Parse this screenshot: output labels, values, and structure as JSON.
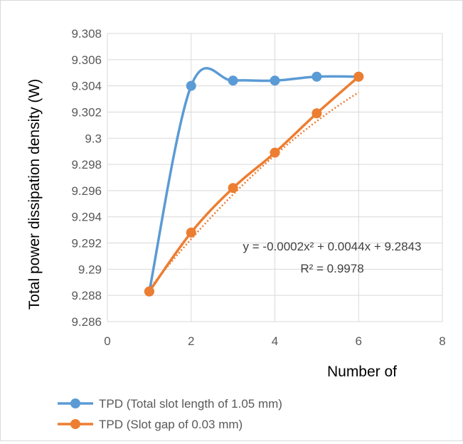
{
  "chart_data": {
    "type": "line",
    "title": "",
    "xlabel": "Number of",
    "ylabel": "Total power dissipation density (W)",
    "xlim": [
      0,
      8
    ],
    "ylim": [
      9.286,
      9.308
    ],
    "x_ticks": [
      "0",
      "2",
      "4",
      "6",
      "8"
    ],
    "y_ticks": [
      "9.286",
      "9.288",
      "9.29",
      "9.292",
      "9.294",
      "9.296",
      "9.298",
      "9.3",
      "9.302",
      "9.304",
      "9.306",
      "9.308"
    ],
    "grid": true,
    "legend_position": "bottom",
    "series": [
      {
        "name": "TPD (Total slot length of 1.05 mm)",
        "color": "#5b9bd5",
        "smooth": true,
        "x": [
          1,
          2,
          3,
          4,
          5,
          6
        ],
        "y": [
          9.2883,
          9.304,
          9.3044,
          9.3044,
          9.3047,
          9.3047
        ]
      },
      {
        "name": "TPD (Slot gap of 0.03 mm)",
        "color": "#ed7d31",
        "smooth": true,
        "x": [
          1,
          2,
          3,
          4,
          5,
          6
        ],
        "y": [
          9.2883,
          9.2928,
          9.2962,
          9.2989,
          9.3019,
          9.3047
        ]
      }
    ],
    "trendline": {
      "series": "TPD (Slot gap of 0.03 mm)",
      "type": "polynomial",
      "coefficients": [
        -0.0002,
        0.0044,
        9.2843
      ],
      "equation": "y = -0.0002x² + 0.0044x + 9.2843",
      "r_squared": "R² = 0.9978"
    }
  }
}
